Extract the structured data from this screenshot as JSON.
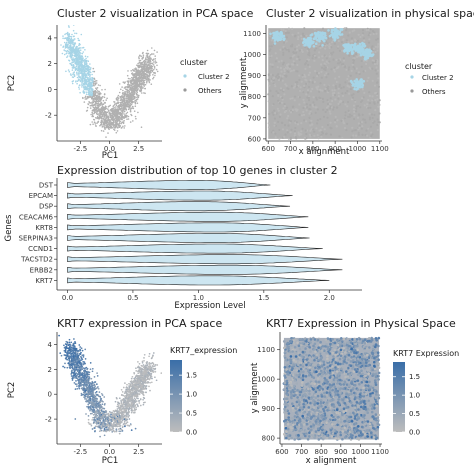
{
  "panels": {
    "pca_cluster": {
      "title": "Cluster 2 visualization in PCA space",
      "xlabel": "PC1",
      "ylabel": "PC2",
      "legend_title": "cluster",
      "legend_items": [
        "Cluster 2",
        "Others"
      ]
    },
    "physical_cluster": {
      "title": "Cluster 2 visualization in physical space",
      "xlabel": "x alignment",
      "ylabel": "y alignment",
      "legend_title": "cluster",
      "legend_items": [
        "Cluster 2",
        "Others"
      ]
    },
    "violin": {
      "title": "Expression distribution of top 10 genes in cluster 2",
      "xlabel": "Expression Level",
      "ylabel": "Genes"
    },
    "pca_krt7": {
      "title": "KRT7 expression in PCA space",
      "xlabel": "PC1",
      "ylabel": "PC2",
      "legend_title": "KRT7_expression"
    },
    "physical_krt7": {
      "title": "KRT7 Expression in Physical Space",
      "xlabel": "x alignment",
      "ylabel": "y alignment",
      "legend_title": "KRT7 Expression"
    }
  },
  "colors": {
    "cluster2": "#a6d4e6",
    "others": "#b0b0b0",
    "violin_fill": "#cde6f1",
    "gradient_low": "#bdbdbd",
    "gradient_high": "#3a6ea8"
  },
  "chart_data": [
    {
      "type": "scatter",
      "id": "pca_cluster",
      "description_of_points": "dense cloud of cells; left arm (PC1 < -1.5) mostly Cluster 2, remainder Others",
      "xlim": [
        -4.5,
        4.5
      ],
      "ylim": [
        -4,
        5
      ],
      "xticks": [
        -2.5,
        0.0,
        2.5
      ],
      "xtick_labels": [
        "-2.5",
        "0.0",
        "2.5"
      ],
      "yticks": [
        -2,
        0,
        2,
        4
      ],
      "yticks_labels": [
        "-2",
        "0",
        "2",
        "4"
      ],
      "series": [
        {
          "name": "Cluster 2",
          "color": "#a6d4e6"
        },
        {
          "name": "Others",
          "color": "#b0b0b0"
        }
      ]
    },
    {
      "type": "scatter",
      "id": "physical_cluster",
      "xlim": [
        590,
        1110
      ],
      "ylim": [
        590,
        1140
      ],
      "xticks": [
        600,
        700,
        800,
        900,
        1000,
        1100
      ],
      "xtick_labels": [
        "600",
        "700",
        "800",
        "900",
        "1000",
        "1100"
      ],
      "yticks": [
        600,
        700,
        800,
        900,
        1000,
        1100
      ],
      "ytick_labels": [
        "600",
        "700",
        "800",
        "900",
        "1000",
        "1100"
      ],
      "cluster2_regions": [
        {
          "x": 640,
          "y": 1090
        },
        {
          "x": 780,
          "y": 1060
        },
        {
          "x": 830,
          "y": 1085
        },
        {
          "x": 905,
          "y": 1100
        },
        {
          "x": 960,
          "y": 1030
        },
        {
          "x": 1010,
          "y": 1030
        },
        {
          "x": 1045,
          "y": 1000
        },
        {
          "x": 1000,
          "y": 860
        }
      ],
      "series": [
        {
          "name": "Cluster 2",
          "color": "#a6d4e6"
        },
        {
          "name": "Others",
          "color": "#b0b0b0"
        }
      ]
    },
    {
      "type": "violin",
      "id": "violin",
      "categories": [
        "DST",
        "EPCAM",
        "DSP",
        "CEACAM6",
        "KRT8",
        "SERPINA3",
        "CCND1",
        "TACSTD2",
        "ERBB2",
        "KRT7"
      ],
      "min": [
        0.0,
        0.0,
        0.0,
        0.0,
        0.0,
        0.0,
        0.0,
        0.0,
        0.0,
        0.0
      ],
      "max": [
        1.55,
        1.72,
        1.7,
        1.84,
        1.84,
        1.85,
        1.95,
        2.1,
        2.1,
        2.0
      ],
      "peak": [
        1.0,
        1.05,
        1.0,
        1.15,
        1.15,
        1.15,
        1.15,
        1.25,
        1.25,
        1.1
      ],
      "xlim": [
        -0.08,
        2.25
      ],
      "xticks": [
        0.0,
        0.5,
        1.0,
        1.5,
        2.0
      ],
      "xtick_labels": [
        "0.0",
        "0.5",
        "1.0",
        "1.5",
        "2.0"
      ]
    },
    {
      "type": "scatter",
      "id": "pca_krt7",
      "xlim": [
        -4.5,
        4.5
      ],
      "ylim": [
        -4,
        5
      ],
      "xticks": [
        -2.5,
        0.0,
        2.5
      ],
      "xtick_labels": [
        "-2.5",
        "0.0",
        "2.5"
      ],
      "yticks": [
        -2,
        0,
        2,
        4
      ],
      "yticks_labels": [
        "-2",
        "0",
        "2",
        "4"
      ],
      "color_range": [
        0.0,
        1.9
      ],
      "colorbar_ticks": [
        0.0,
        0.5,
        1.0,
        1.5
      ],
      "colorbar_labels": [
        "0.0",
        "0.5",
        "1.0",
        "1.5"
      ]
    },
    {
      "type": "scatter",
      "id": "physical_krt7",
      "xlim": [
        590,
        1110
      ],
      "ylim": [
        780,
        1160
      ],
      "xticks": [
        600,
        700,
        800,
        900,
        1000,
        1100
      ],
      "xtick_labels": [
        "600",
        "700",
        "800",
        "900",
        "1000",
        "1100"
      ],
      "yticks": [
        800,
        900,
        1000,
        1100
      ],
      "ytick_labels": [
        "800",
        "900",
        "1000",
        "1100"
      ],
      "color_range": [
        0.0,
        1.9
      ],
      "colorbar_ticks": [
        0.0,
        0.5,
        1.0,
        1.5
      ],
      "colorbar_labels": [
        "0.0",
        "0.5",
        "1.0",
        "1.5"
      ]
    }
  ]
}
